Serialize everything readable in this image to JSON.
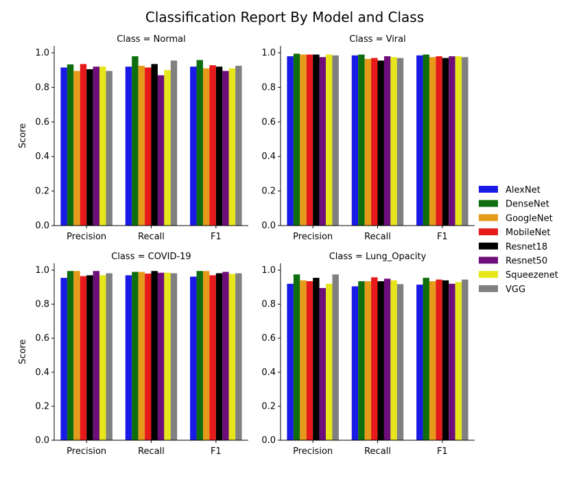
{
  "chart_data": [
    {
      "type": "bar",
      "title": "Class = Normal",
      "ylabel": "Score",
      "categories": [
        "Precision",
        "Recall",
        "F1"
      ],
      "ylim": [
        0,
        1.0
      ],
      "yticks": [
        "0.0",
        "0.2",
        "0.4",
        "0.6",
        "0.8",
        "1.0"
      ],
      "series": [
        {
          "name": "AlexNet",
          "values": [
            0.915,
            0.92,
            0.92
          ]
        },
        {
          "name": "DenseNet",
          "values": [
            0.933,
            0.98,
            0.958
          ]
        },
        {
          "name": "GoogleNet",
          "values": [
            0.895,
            0.925,
            0.91
          ]
        },
        {
          "name": "MobileNet",
          "values": [
            0.935,
            0.915,
            0.928
          ]
        },
        {
          "name": "Resnet18",
          "values": [
            0.905,
            0.935,
            0.92
          ]
        },
        {
          "name": "Resnet50",
          "values": [
            0.92,
            0.87,
            0.895
          ]
        },
        {
          "name": "Squeezenet",
          "values": [
            0.92,
            0.9,
            0.91
          ]
        },
        {
          "name": "VGG",
          "values": [
            0.895,
            0.955,
            0.925
          ]
        }
      ]
    },
    {
      "type": "bar",
      "title": "Class = Viral",
      "ylabel": "",
      "categories": [
        "Precision",
        "Recall",
        "F1"
      ],
      "ylim": [
        0,
        1.0
      ],
      "yticks": [
        "0.0",
        "0.2",
        "0.4",
        "0.6",
        "0.8",
        "1.0"
      ],
      "series": [
        {
          "name": "AlexNet",
          "values": [
            0.98,
            0.985,
            0.985
          ]
        },
        {
          "name": "DenseNet",
          "values": [
            0.995,
            0.99,
            0.99
          ]
        },
        {
          "name": "GoogleNet",
          "values": [
            0.99,
            0.965,
            0.975
          ]
        },
        {
          "name": "MobileNet",
          "values": [
            0.99,
            0.97,
            0.98
          ]
        },
        {
          "name": "Resnet18",
          "values": [
            0.99,
            0.955,
            0.97
          ]
        },
        {
          "name": "Resnet50",
          "values": [
            0.975,
            0.98,
            0.98
          ]
        },
        {
          "name": "Squeezenet",
          "values": [
            0.99,
            0.975,
            0.98
          ]
        },
        {
          "name": "VGG",
          "values": [
            0.985,
            0.97,
            0.975
          ]
        }
      ]
    },
    {
      "type": "bar",
      "title": "Class = COVID-19",
      "ylabel": "Score",
      "categories": [
        "Precision",
        "Recall",
        "F1"
      ],
      "ylim": [
        0,
        1.0
      ],
      "yticks": [
        "0.0",
        "0.2",
        "0.4",
        "0.6",
        "0.8",
        "1.0"
      ],
      "series": [
        {
          "name": "AlexNet",
          "values": [
            0.955,
            0.97,
            0.962
          ]
        },
        {
          "name": "DenseNet",
          "values": [
            0.995,
            0.99,
            0.995
          ]
        },
        {
          "name": "GoogleNet",
          "values": [
            0.995,
            0.99,
            0.995
          ]
        },
        {
          "name": "MobileNet",
          "values": [
            0.965,
            0.98,
            0.97
          ]
        },
        {
          "name": "Resnet18",
          "values": [
            0.97,
            0.995,
            0.982
          ]
        },
        {
          "name": "Resnet50",
          "values": [
            0.995,
            0.985,
            0.99
          ]
        },
        {
          "name": "Squeezenet",
          "values": [
            0.97,
            0.985,
            0.978
          ]
        },
        {
          "name": "VGG",
          "values": [
            0.982,
            0.982,
            0.982
          ]
        }
      ]
    },
    {
      "type": "bar",
      "title": "Class = Lung_Opacity",
      "ylabel": "",
      "categories": [
        "Precision",
        "Recall",
        "F1"
      ],
      "ylim": [
        0,
        1.0
      ],
      "yticks": [
        "0.0",
        "0.2",
        "0.4",
        "0.6",
        "0.8",
        "1.0"
      ],
      "series": [
        {
          "name": "AlexNet",
          "values": [
            0.92,
            0.905,
            0.915
          ]
        },
        {
          "name": "DenseNet",
          "values": [
            0.975,
            0.935,
            0.955
          ]
        },
        {
          "name": "GoogleNet",
          "values": [
            0.94,
            0.935,
            0.935
          ]
        },
        {
          "name": "MobileNet",
          "values": [
            0.935,
            0.958,
            0.945
          ]
        },
        {
          "name": "Resnet18",
          "values": [
            0.955,
            0.935,
            0.94
          ]
        },
        {
          "name": "Resnet50",
          "values": [
            0.895,
            0.95,
            0.92
          ]
        },
        {
          "name": "Squeezenet",
          "values": [
            0.92,
            0.94,
            0.93
          ]
        },
        {
          "name": "VGG",
          "values": [
            0.975,
            0.918,
            0.945
          ]
        }
      ]
    }
  ],
  "figure": {
    "title": "Classification Report By Model and Class"
  },
  "legend": {
    "position": "right",
    "items": [
      "AlexNet",
      "DenseNet",
      "GoogleNet",
      "MobileNet",
      "Resnet18",
      "Resnet50",
      "Squeezenet",
      "VGG"
    ]
  },
  "colors": {
    "AlexNet": "#1a1ae6",
    "DenseNet": "#0e6e0e",
    "GoogleNet": "#e69a1a",
    "MobileNet": "#e61a1a",
    "Resnet18": "#000000",
    "Resnet50": "#6e0e7a",
    "Squeezenet": "#e6e61a",
    "VGG": "#808080"
  }
}
